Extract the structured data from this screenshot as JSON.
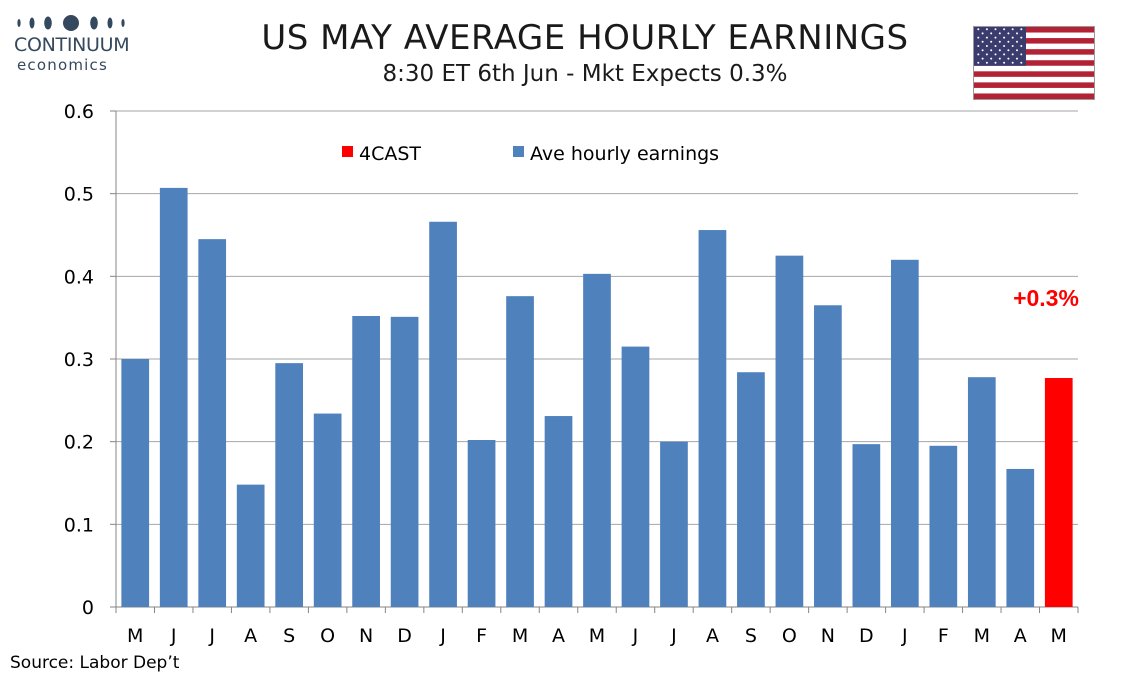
{
  "header": {
    "title": "US MAY AVERAGE HOURLY EARNINGS",
    "subtitle": "8:30 ET 6th Jun - Mkt Expects 0.3%"
  },
  "logo": {
    "word1": "CONTINUUM",
    "word2": "economics"
  },
  "flag_icon": "us-flag-icon",
  "source": "Source: Labor Dep’t",
  "colors": {
    "actual": "#4f81bd",
    "forecast": "#ff0000",
    "grid": "#a6a6a6",
    "logo": "#34495e"
  },
  "chart_data": {
    "type": "bar",
    "categories": [
      "M",
      "J",
      "J",
      "A",
      "S",
      "O",
      "N",
      "D",
      "J",
      "F",
      "M",
      "A",
      "M",
      "J",
      "J",
      "A",
      "S",
      "O",
      "N",
      "D",
      "J",
      "F",
      "M",
      "A",
      "M"
    ],
    "series": [
      {
        "name": "Ave hourly earnings",
        "color": "#4f81bd",
        "values": [
          0.3,
          0.507,
          0.445,
          0.148,
          0.295,
          0.234,
          0.352,
          0.351,
          0.466,
          0.202,
          0.376,
          0.231,
          0.403,
          0.315,
          0.2,
          0.456,
          0.284,
          0.425,
          0.365,
          0.197,
          0.42,
          0.195,
          0.278,
          0.167,
          null
        ]
      },
      {
        "name": "4CAST",
        "color": "#ff0000",
        "values": [
          null,
          null,
          null,
          null,
          null,
          null,
          null,
          null,
          null,
          null,
          null,
          null,
          null,
          null,
          null,
          null,
          null,
          null,
          null,
          null,
          null,
          null,
          null,
          null,
          0.277
        ]
      }
    ],
    "ylim": [
      0,
      0.6
    ],
    "yticks": [
      "0",
      "0.1",
      "0.2",
      "0.3",
      "0.4",
      "0.5",
      "0.6"
    ],
    "ytick_values": [
      0,
      0.1,
      0.2,
      0.3,
      0.4,
      0.5,
      0.6
    ],
    "grid": true,
    "legend_position": "top",
    "annotation": "+0.3%"
  }
}
